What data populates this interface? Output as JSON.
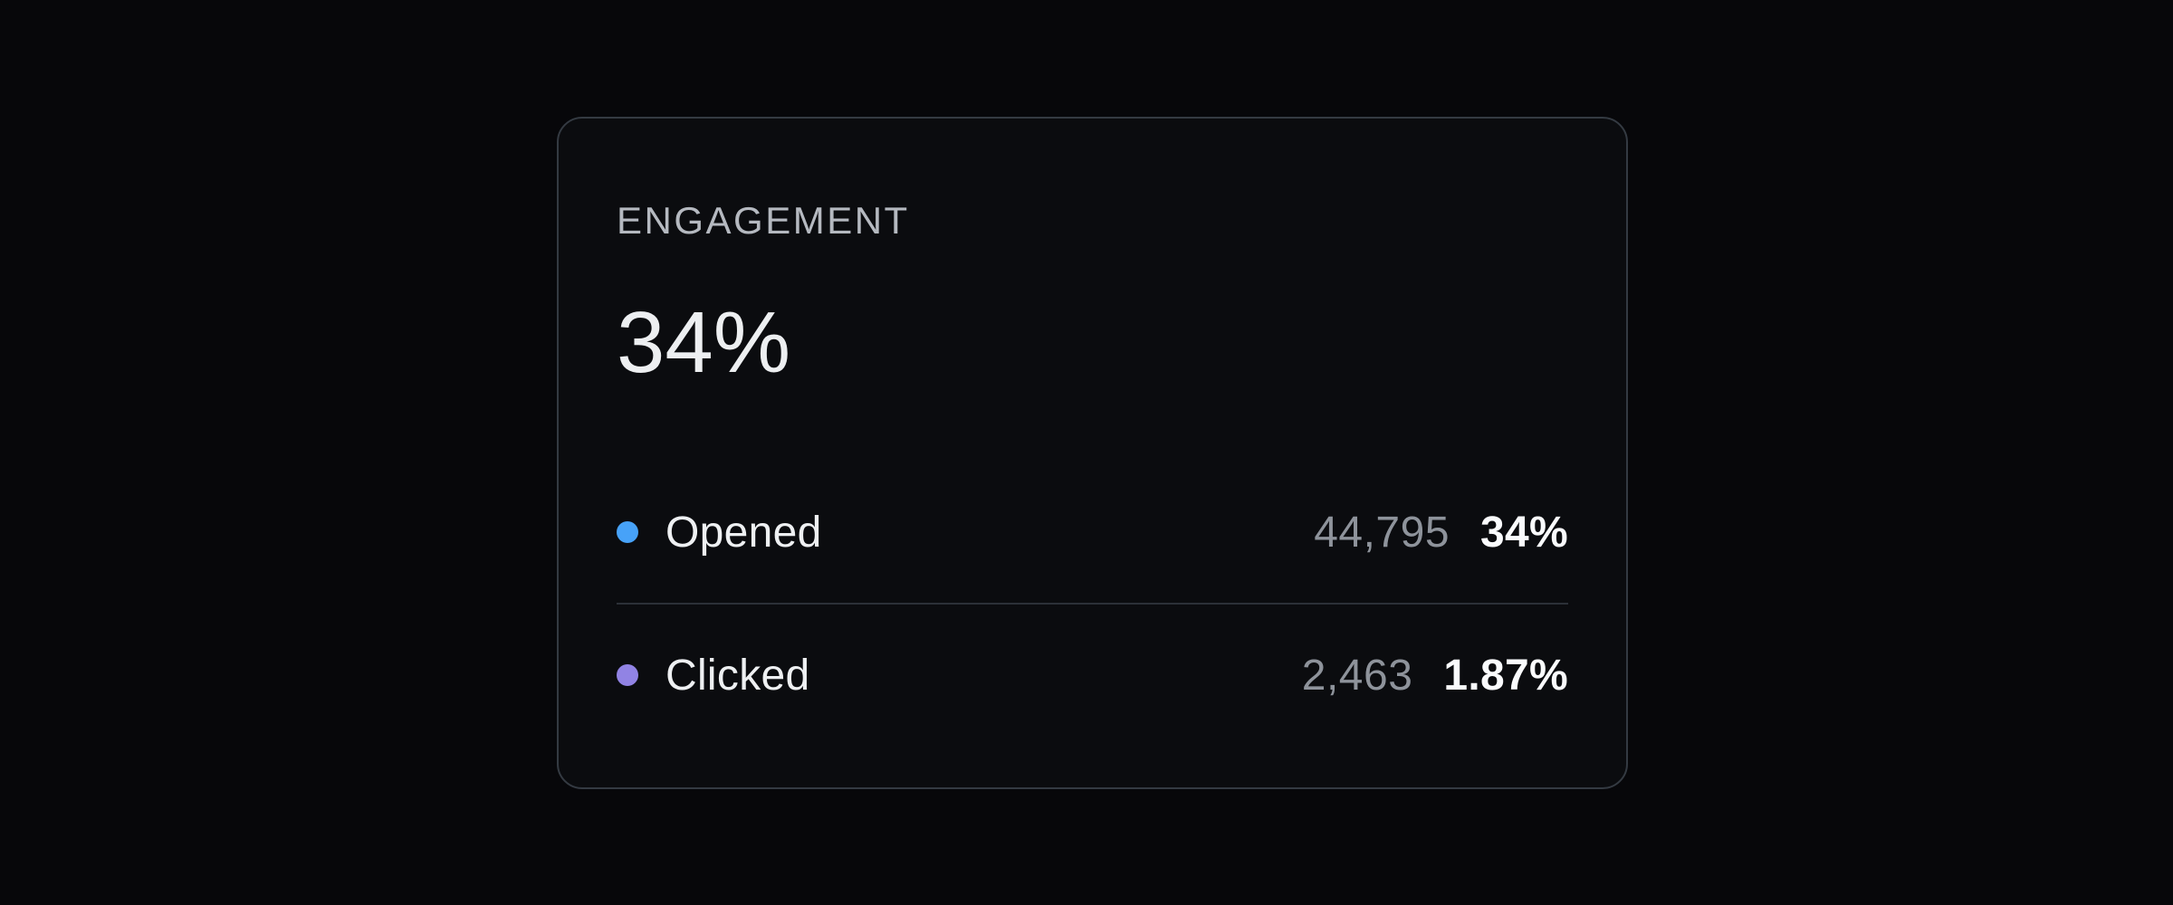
{
  "card": {
    "title": "ENGAGEMENT",
    "headline_value": "34%",
    "rows": [
      {
        "label": "Opened",
        "count": "44,795",
        "rate": "34%",
        "dot_color": "#47a2f8",
        "dot_icon": "blue-dot"
      },
      {
        "label": "Clicked",
        "count": "2,463",
        "rate": "1.87%",
        "dot_color": "#9183e4",
        "dot_icon": "purple-dot"
      }
    ]
  },
  "colors": {
    "page_background": "#07070a",
    "card_background": "#0b0c0f",
    "card_border": "#343a42",
    "divider": "#2c3037",
    "title_text": "#b5b9c0",
    "headline_text": "#edeff1",
    "label_text": "#eef0f2",
    "count_text": "#8e939b",
    "rate_text": "#fafbfd",
    "opened_accent": "#47a2f8",
    "clicked_accent": "#9183e4"
  },
  "chart_data": {
    "type": "table",
    "title": "ENGAGEMENT",
    "headline_value_pct": 34,
    "categories": [
      "Opened",
      "Clicked"
    ],
    "series": [
      {
        "name": "count",
        "values": [
          44795,
          2463
        ]
      },
      {
        "name": "rate_pct",
        "values": [
          34,
          1.87
        ]
      }
    ],
    "legend_colors": [
      "#47a2f8",
      "#9183e4"
    ],
    "legend_position": "left-of-rows"
  }
}
